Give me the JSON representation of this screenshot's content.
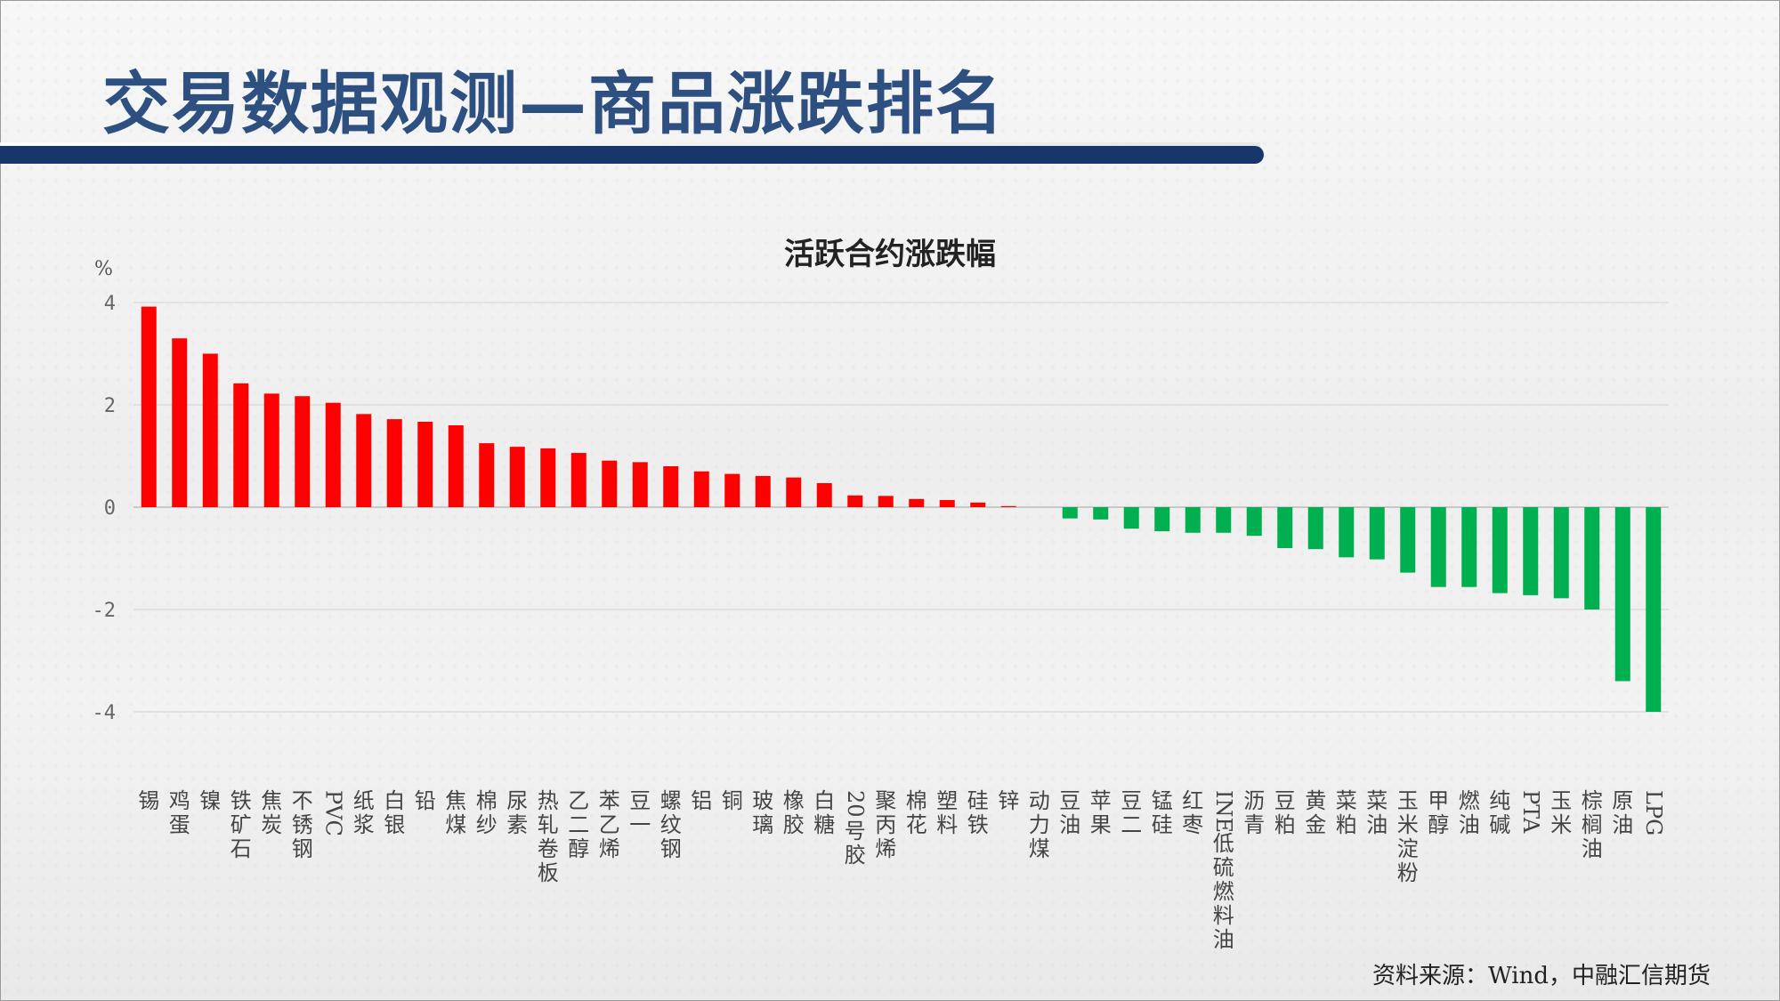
{
  "header": {
    "title": "交易数据观测—商品涨跌排名"
  },
  "footer": {
    "source": "资料来源：Wind，中融汇信期货"
  },
  "colors": {
    "positive": "#ff0000",
    "negative": "#00b050",
    "title_bar": "#17376b",
    "title_text": "#2e5080"
  },
  "chart_data": {
    "type": "bar",
    "title": "活跃合约涨跌幅",
    "unit": "%",
    "ylim": [
      -4,
      4
    ],
    "yticks": [
      "4",
      "2",
      "0",
      "-2",
      "-4"
    ],
    "grid": true,
    "categories": [
      "锡",
      "鸡蛋",
      "镍",
      "铁矿石",
      "焦炭",
      "不锈钢",
      "PVC",
      "纸浆",
      "白银",
      "铅",
      "焦煤",
      "棉纱",
      "尿素",
      "热轧卷板",
      "乙二醇",
      "苯乙烯",
      "豆一",
      "螺纹钢",
      "铝",
      "铜",
      "玻璃",
      "橡胶",
      "白糖",
      "20号胶",
      "聚丙烯",
      "棉花",
      "塑料",
      "硅铁",
      "锌",
      "动力煤",
      "豆油",
      "苹果",
      "豆二",
      "锰硅",
      "红枣",
      "INE低硫燃料油",
      "沥青",
      "豆粕",
      "黄金",
      "菜粕",
      "菜油",
      "玉米淀粉",
      "甲醇",
      "燃油",
      "纯碱",
      "PTA",
      "玉米",
      "棕榈油",
      "原油",
      "LPG"
    ],
    "values": [
      3.92,
      3.3,
      3.0,
      2.42,
      2.22,
      2.17,
      2.04,
      1.82,
      1.72,
      1.67,
      1.6,
      1.25,
      1.18,
      1.15,
      1.06,
      0.91,
      0.88,
      0.8,
      0.7,
      0.65,
      0.61,
      0.58,
      0.47,
      0.23,
      0.22,
      0.16,
      0.14,
      0.09,
      0.02,
      0.0,
      -0.22,
      -0.24,
      -0.42,
      -0.47,
      -0.5,
      -0.5,
      -0.56,
      -0.8,
      -0.82,
      -0.98,
      -1.02,
      -1.28,
      -1.56,
      -1.56,
      -1.68,
      -1.72,
      -1.78,
      -2.0,
      -3.4,
      -4.0
    ],
    "label_columns": [
      [
        "锡"
      ],
      [
        "鸡",
        "蛋"
      ],
      [
        "镍"
      ],
      [
        "铁",
        "矿",
        "石"
      ],
      [
        "焦",
        "炭"
      ],
      [
        "不",
        "锈",
        "钢"
      ],
      [
        "PVC"
      ],
      [
        "纸",
        "浆"
      ],
      [
        "白",
        "银"
      ],
      [
        "铅"
      ],
      [
        "焦",
        "煤"
      ],
      [
        "棉",
        "纱"
      ],
      [
        "尿",
        "素"
      ],
      [
        "热",
        "轧",
        "卷",
        "板"
      ],
      [
        "乙",
        "二",
        "醇"
      ],
      [
        "苯",
        "乙",
        "烯"
      ],
      [
        "豆",
        "一"
      ],
      [
        "螺",
        "纹",
        "钢"
      ],
      [
        "铝"
      ],
      [
        "铜"
      ],
      [
        "玻",
        "璃"
      ],
      [
        "橡",
        "胶"
      ],
      [
        "白",
        "糖"
      ],
      [
        "20",
        "号",
        "胶"
      ],
      [
        "聚",
        "丙",
        "烯"
      ],
      [
        "棉",
        "花"
      ],
      [
        "塑",
        "料"
      ],
      [
        "硅",
        "铁"
      ],
      [
        "锌"
      ],
      [
        "动",
        "力",
        "煤"
      ],
      [
        "豆",
        "油"
      ],
      [
        "苹",
        "果"
      ],
      [
        "豆",
        "二"
      ],
      [
        "锰",
        "硅"
      ],
      [
        "红",
        "枣"
      ],
      [
        "INE",
        "低",
        "硫",
        "燃",
        "料",
        "油"
      ],
      [
        "沥",
        "青"
      ],
      [
        "豆",
        "粕"
      ],
      [
        "黄",
        "金"
      ],
      [
        "菜",
        "粕"
      ],
      [
        "菜",
        "油"
      ],
      [
        "玉",
        "米",
        "淀",
        "粉"
      ],
      [
        "甲",
        "醇"
      ],
      [
        "燃",
        "油"
      ],
      [
        "纯",
        "碱"
      ],
      [
        "PTA"
      ],
      [
        "玉",
        "米"
      ],
      [
        "棕",
        "榈",
        "油"
      ],
      [
        "原",
        "油"
      ],
      [
        "LPG"
      ]
    ]
  }
}
